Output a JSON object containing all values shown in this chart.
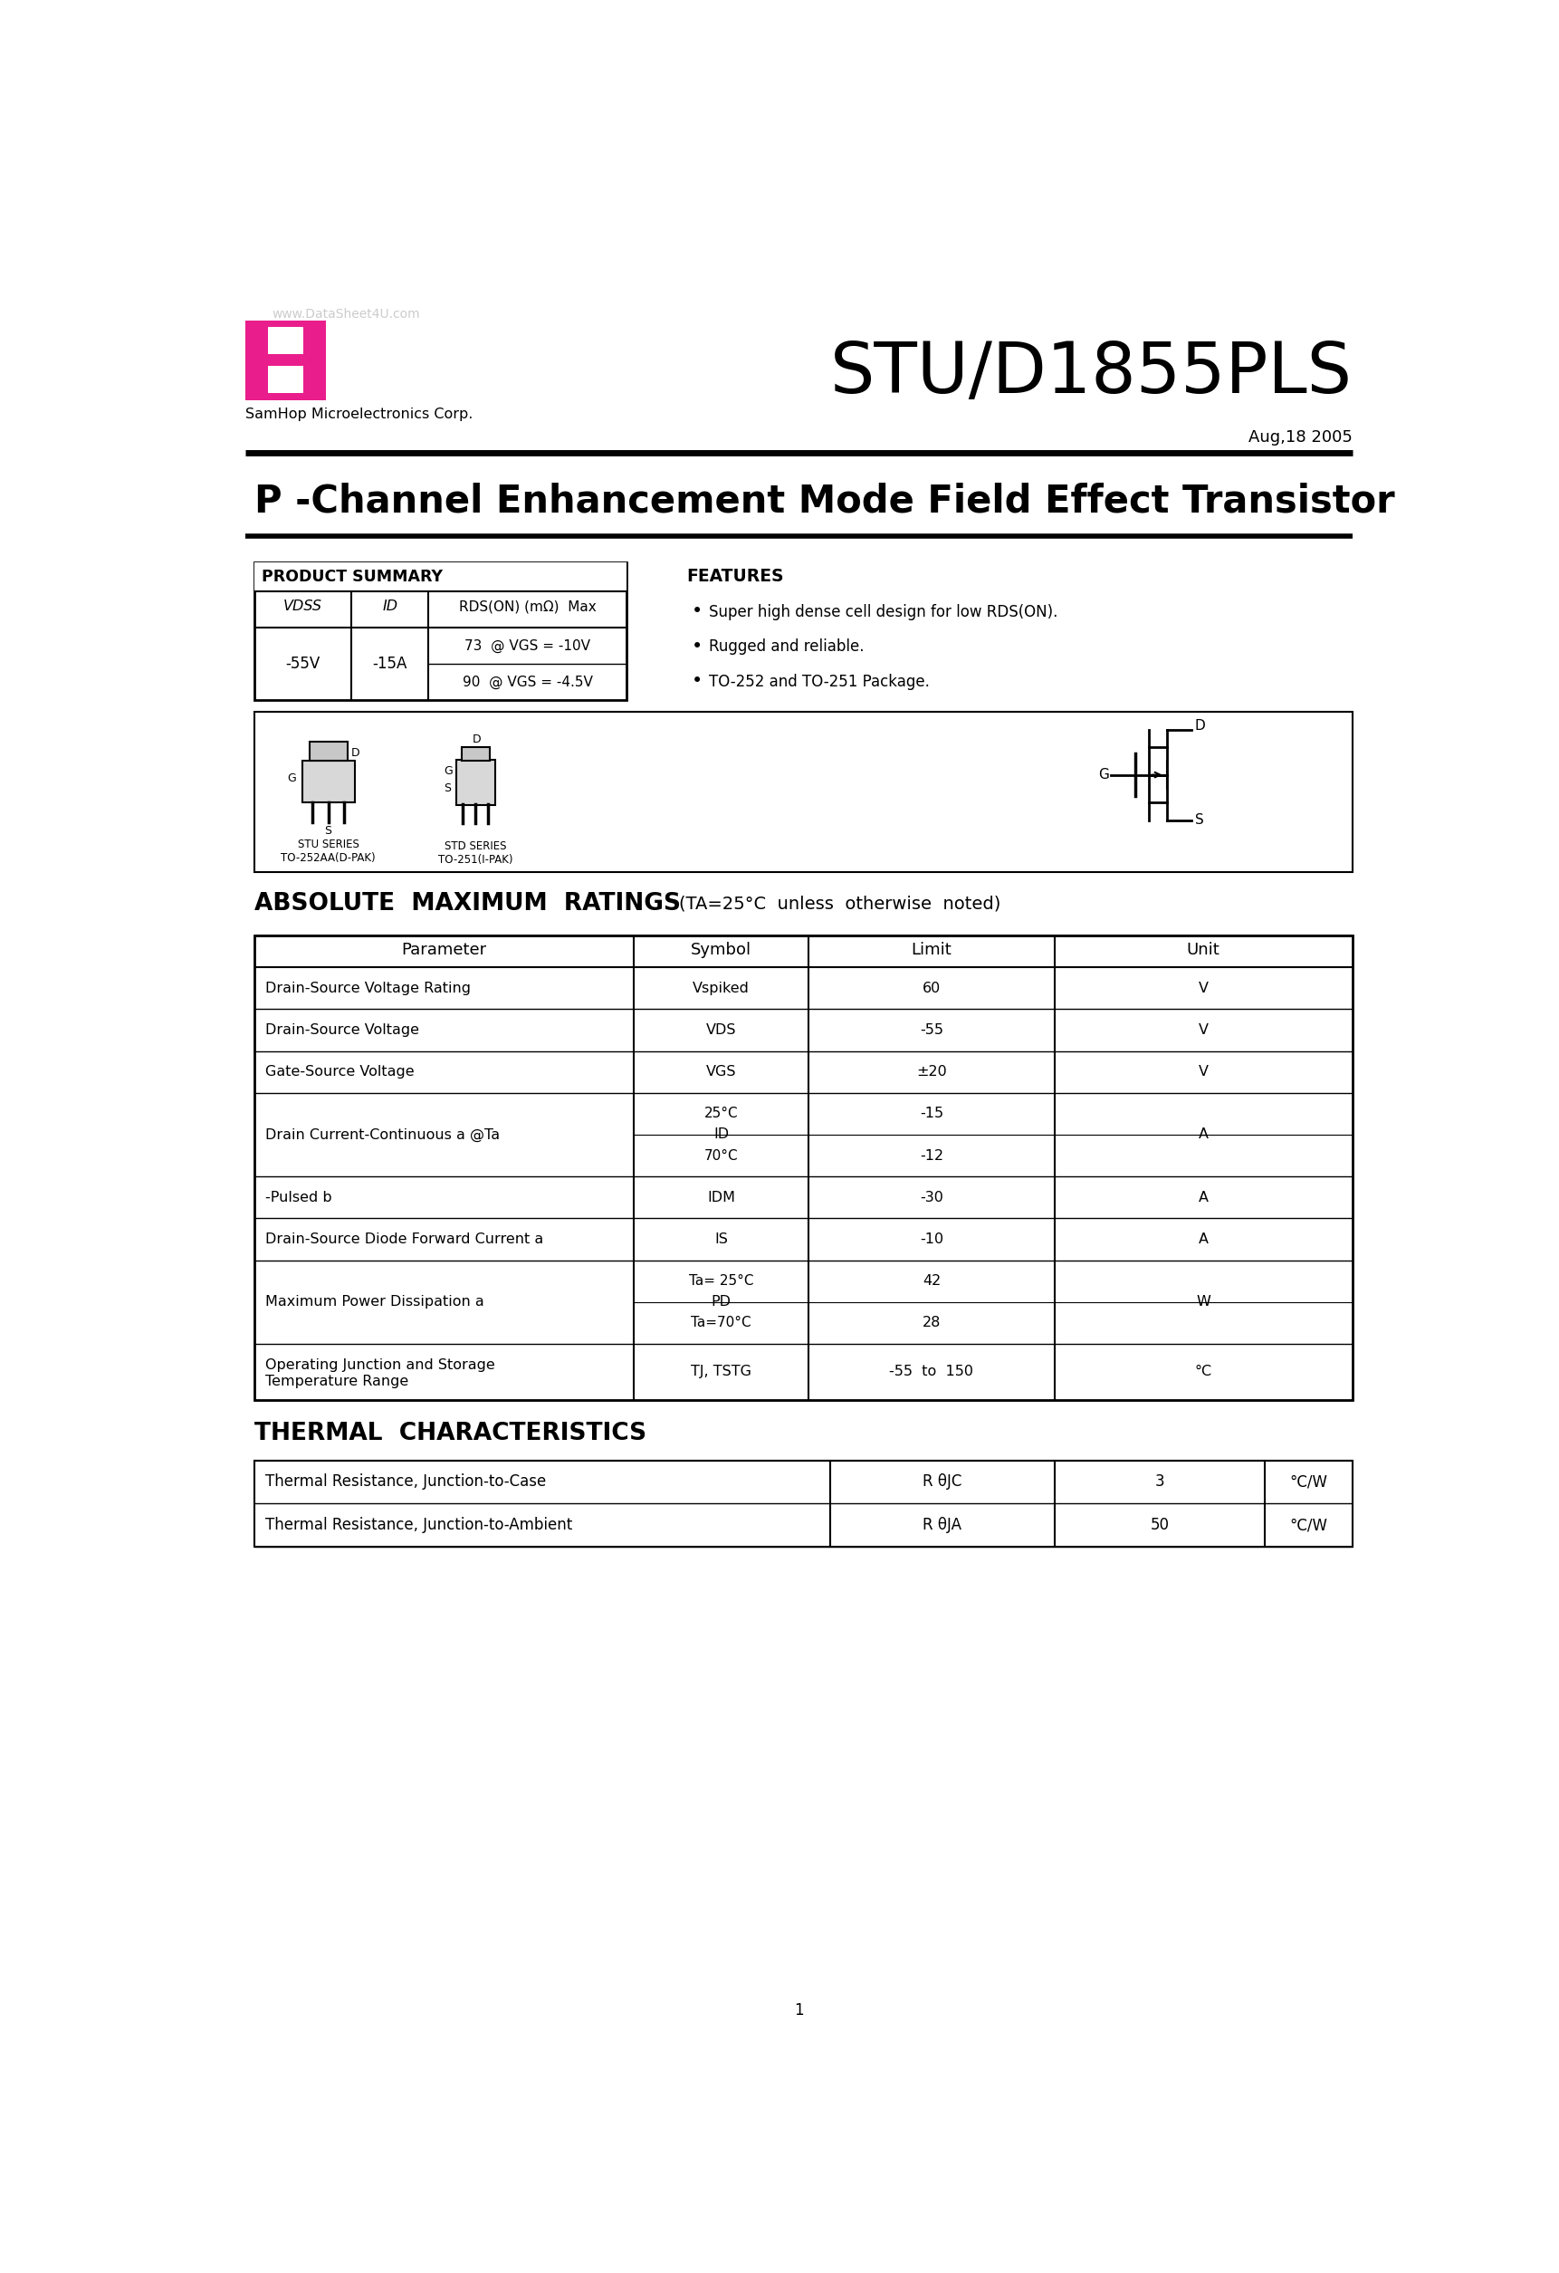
{
  "page_title": "STU/D1855PLS",
  "company": "SamHop Microelectronics Corp.",
  "date": "Aug,18 2005",
  "watermark": "www.DataSheet4U.com",
  "subtitle": "P -Channel Enhancement Mode Field Effect Transistor",
  "product_summary_title": "PRODUCT SUMMARY",
  "features_title": "FEATURES",
  "features": [
    "Super high dense cell design for low RDS(ON).",
    "Rugged and reliable.",
    "TO-252 and TO-251 Package."
  ],
  "product_summary_vdss": "-55V",
  "product_summary_id": "-15A",
  "product_summary_row1": "73  @ VGS = -10V",
  "product_summary_row2": "90  @ VGS = -4.5V",
  "abs_max_title": "ABSOLUTE  MAXIMUM  RATINGS",
  "abs_max_condition": "(TA=25°C  unless  otherwise  noted)",
  "abs_max_headers": [
    "Parameter",
    "Symbol",
    "Limit",
    "Unit"
  ],
  "abs_max_rows": [
    {
      "param": "Drain-Source Voltage Rating",
      "symbol": "Vspiked",
      "limit": "60",
      "unit": "V",
      "split": false
    },
    {
      "param": "Drain-Source Voltage",
      "symbol": "VDS",
      "limit": "-55",
      "unit": "V",
      "split": false
    },
    {
      "param": "Gate-Source Voltage",
      "symbol": "VGS",
      "limit": "±20",
      "unit": "V",
      "split": false
    },
    {
      "param": "Drain Current-Continuous a @Ta",
      "symbol_sub1": "25°C",
      "symbol_sub2": "70°C",
      "symbol": "ID",
      "limit1": "-15",
      "limit2": "-12",
      "unit": "A",
      "split": true
    },
    {
      "param": "-Pulsed b",
      "symbol": "IDM",
      "limit": "-30",
      "unit": "A",
      "split": false
    },
    {
      "param": "Drain-Source Diode Forward Current a",
      "symbol": "IS",
      "limit": "-10",
      "unit": "A",
      "split": false
    },
    {
      "param": "Maximum Power Dissipation a",
      "symbol_sub1": "Ta= 25°C",
      "symbol_sub2": "Ta=70°C",
      "symbol": "PD",
      "limit1": "42",
      "limit2": "28",
      "unit": "W",
      "split": true
    },
    {
      "param": "Operating Junction and Storage\nTemperature Range",
      "symbol": "TJ, TSTG",
      "limit": "-55  to  150",
      "unit": "°C",
      "split": false,
      "tall": true
    }
  ],
  "thermal_title": "THERMAL  CHARACTERISTICS",
  "thermal_rows": [
    {
      "param": "Thermal Resistance, Junction-to-Case",
      "symbol": "R θJC",
      "limit": "3",
      "unit": "°C/W"
    },
    {
      "param": "Thermal Resistance, Junction-to-Ambient",
      "symbol": "R θJA",
      "limit": "50",
      "unit": "°C/W"
    }
  ],
  "page_number": "1",
  "logo_color": "#E91E8C",
  "bg_color": "#FFFFFF",
  "text_color": "#000000"
}
